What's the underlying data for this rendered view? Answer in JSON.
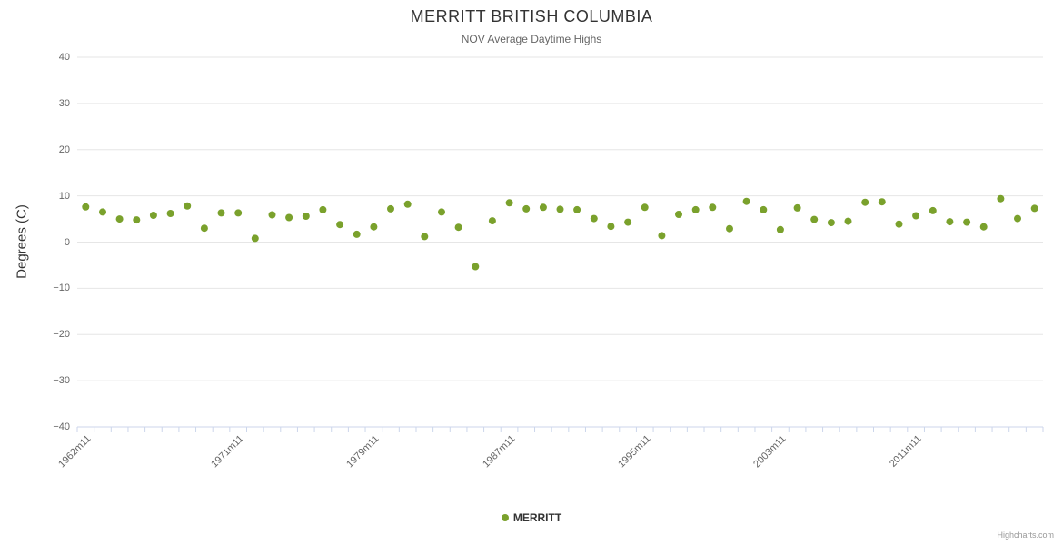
{
  "chart_data": {
    "type": "scatter",
    "title": "MERRITT BRITISH COLUMBIA",
    "subtitle": "NOV Average Daytime Highs",
    "xlabel": "",
    "ylabel": "Degrees (C)",
    "ylim": [
      -40,
      40
    ],
    "ytick_step": 10,
    "grid": true,
    "legend_position": "bottom-center",
    "categories": [
      "1962m11",
      "1963m11",
      "1964m11",
      "1965m11",
      "1966m11",
      "1967m11",
      "1968m11",
      "1969m11",
      "1970m11",
      "1971m11",
      "1972m11",
      "1973m11",
      "1974m11",
      "1975m11",
      "1976m11",
      "1977m11",
      "1978m11",
      "1979m11",
      "1980m11",
      "1981m11",
      "1982m11",
      "1983m11",
      "1984m11",
      "1985m11",
      "1986m11",
      "1987m11",
      "1988m11",
      "1989m11",
      "1990m11",
      "1991m11",
      "1992m11",
      "1993m11",
      "1994m11",
      "1995m11",
      "1996m11",
      "1997m11",
      "1998m11",
      "1999m11",
      "2000m11",
      "2001m11",
      "2002m11",
      "2003m11",
      "2004m11",
      "2005m11",
      "2006m11",
      "2007m11",
      "2008m11",
      "2009m11",
      "2010m11",
      "2011m11",
      "2012m11",
      "2013m11",
      "2014m11",
      "2015m11",
      "2016m11",
      "2017m11",
      "2018m11"
    ],
    "xtick_indices": [
      0,
      9,
      17,
      25,
      33,
      41,
      49
    ],
    "series": [
      {
        "name": "MERRITT",
        "values": [
          7.6,
          6.5,
          5.0,
          4.8,
          5.8,
          6.2,
          7.8,
          3.0,
          6.3,
          6.3,
          0.8,
          5.9,
          5.3,
          5.6,
          7.0,
          3.8,
          1.7,
          3.3,
          7.2,
          8.2,
          1.2,
          6.5,
          3.2,
          -5.3,
          4.6,
          8.5,
          7.2,
          7.5,
          7.1,
          7.0,
          5.1,
          3.4,
          4.3,
          7.5,
          1.4,
          6.0,
          7.0,
          7.5,
          2.9,
          8.8,
          7.0,
          2.7,
          7.4,
          4.9,
          4.2,
          4.5,
          8.6,
          8.7,
          3.9,
          5.7,
          6.8,
          4.4,
          4.3,
          3.3,
          9.4,
          5.1,
          7.3
        ]
      }
    ],
    "colors": {
      "point": "#7aa12c",
      "grid": "#e6e6e6",
      "axis": "#ccd6eb",
      "title": "#333333",
      "subtitle": "#666666",
      "tick_label": "#666666"
    }
  },
  "legend": {
    "label": "MERRITT"
  },
  "credits": {
    "label": "Highcharts.com"
  }
}
